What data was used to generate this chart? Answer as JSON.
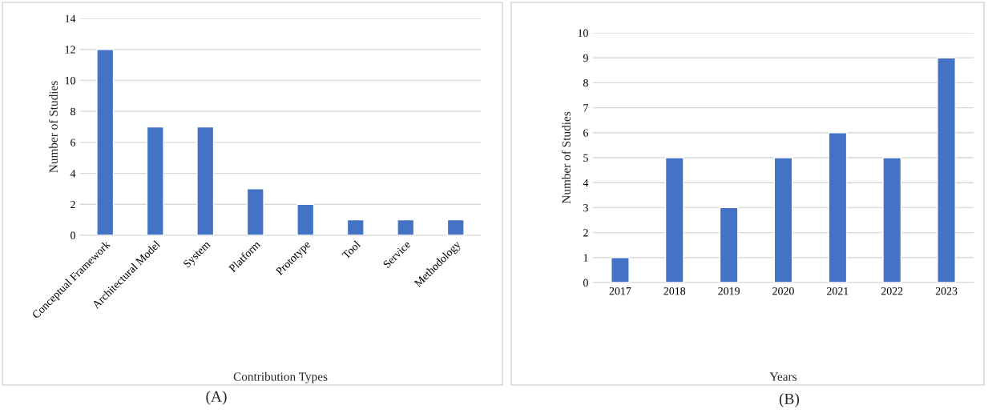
{
  "chart_data": [
    {
      "type": "bar",
      "xlabel": "Contribution Types",
      "ylabel": "Number of Studies",
      "categories": [
        "Conceptual Framework",
        "Architectural Model",
        "System",
        "Platform",
        "Prototype",
        "Tool",
        "Service",
        "Methodology"
      ],
      "values": [
        12,
        7,
        7,
        3,
        2,
        1,
        1,
        1
      ],
      "color": "#4472c4",
      "ylim": [
        0,
        14
      ],
      "yticks": [
        0,
        2,
        4,
        6,
        8,
        10,
        12,
        14
      ],
      "grid": "y",
      "annotations": [
        "(A)"
      ]
    },
    {
      "type": "bar",
      "xlabel": "Years",
      "ylabel": "Number of Studies",
      "categories": [
        "2017",
        "2018",
        "2019",
        "2020",
        "2021",
        "2022",
        "2023"
      ],
      "values": [
        1,
        5,
        3,
        5,
        6,
        5,
        9
      ],
      "color": "#4472c4",
      "ylim": [
        0,
        10
      ],
      "yticks": [
        0,
        1,
        2,
        3,
        4,
        5,
        6,
        7,
        8,
        9,
        10
      ],
      "grid": "y",
      "annotations": [
        "(B)"
      ]
    }
  ]
}
